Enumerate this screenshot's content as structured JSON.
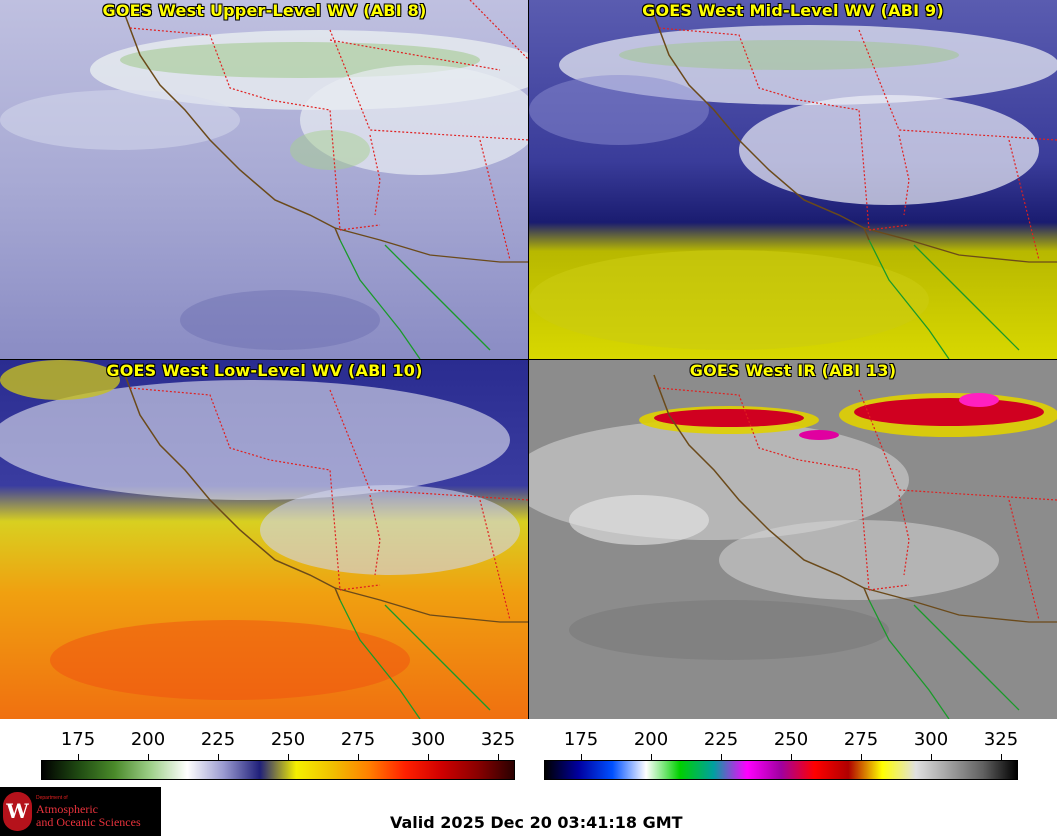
{
  "panels": [
    {
      "title": "GOES West Upper-Level WV (ABI 8)"
    },
    {
      "title": "GOES West Mid-Level WV (ABI 9)"
    },
    {
      "title": "GOES West Low-Level WV (ABI 10)"
    },
    {
      "title": "GOES West IR (ABI 13)"
    }
  ],
  "colorbars": [
    {
      "ticks": [
        "175",
        "200",
        "225",
        "250",
        "275",
        "300",
        "325"
      ],
      "stops": [
        "#000000",
        "#1f4a12",
        "#4a8a2a",
        "#9fd08a",
        "#ffffff",
        "#9a9ad0",
        "#20207a",
        "#f5f000",
        "#f0c000",
        "#ff8000",
        "#ff2000",
        "#d00000",
        "#8a0000",
        "#2a0000"
      ]
    },
    {
      "ticks": [
        "175",
        "200",
        "225",
        "250",
        "275",
        "300",
        "325"
      ],
      "stops": [
        "#000000",
        "#0000a0",
        "#0050ff",
        "#ffffff",
        "#00d000",
        "#00a0a0",
        "#ff00ff",
        "#a000a0",
        "#ff0000",
        "#b00000",
        "#ffff00",
        "#e0e0e0",
        "#a0a0a0",
        "#606060",
        "#000000"
      ]
    }
  ],
  "logo": {
    "dept": "Department of",
    "line1": "Atmospheric",
    "line2": "and Oceanic Sciences",
    "crest": "W"
  },
  "valid_time": "Valid 2025 Dec 20 03:41:18 GMT",
  "colors": {
    "title_text": "#ffff00",
    "state_borders": "#e02020",
    "coastline": "#6b4a1a",
    "mexico_coast": "#1a9a2a"
  }
}
